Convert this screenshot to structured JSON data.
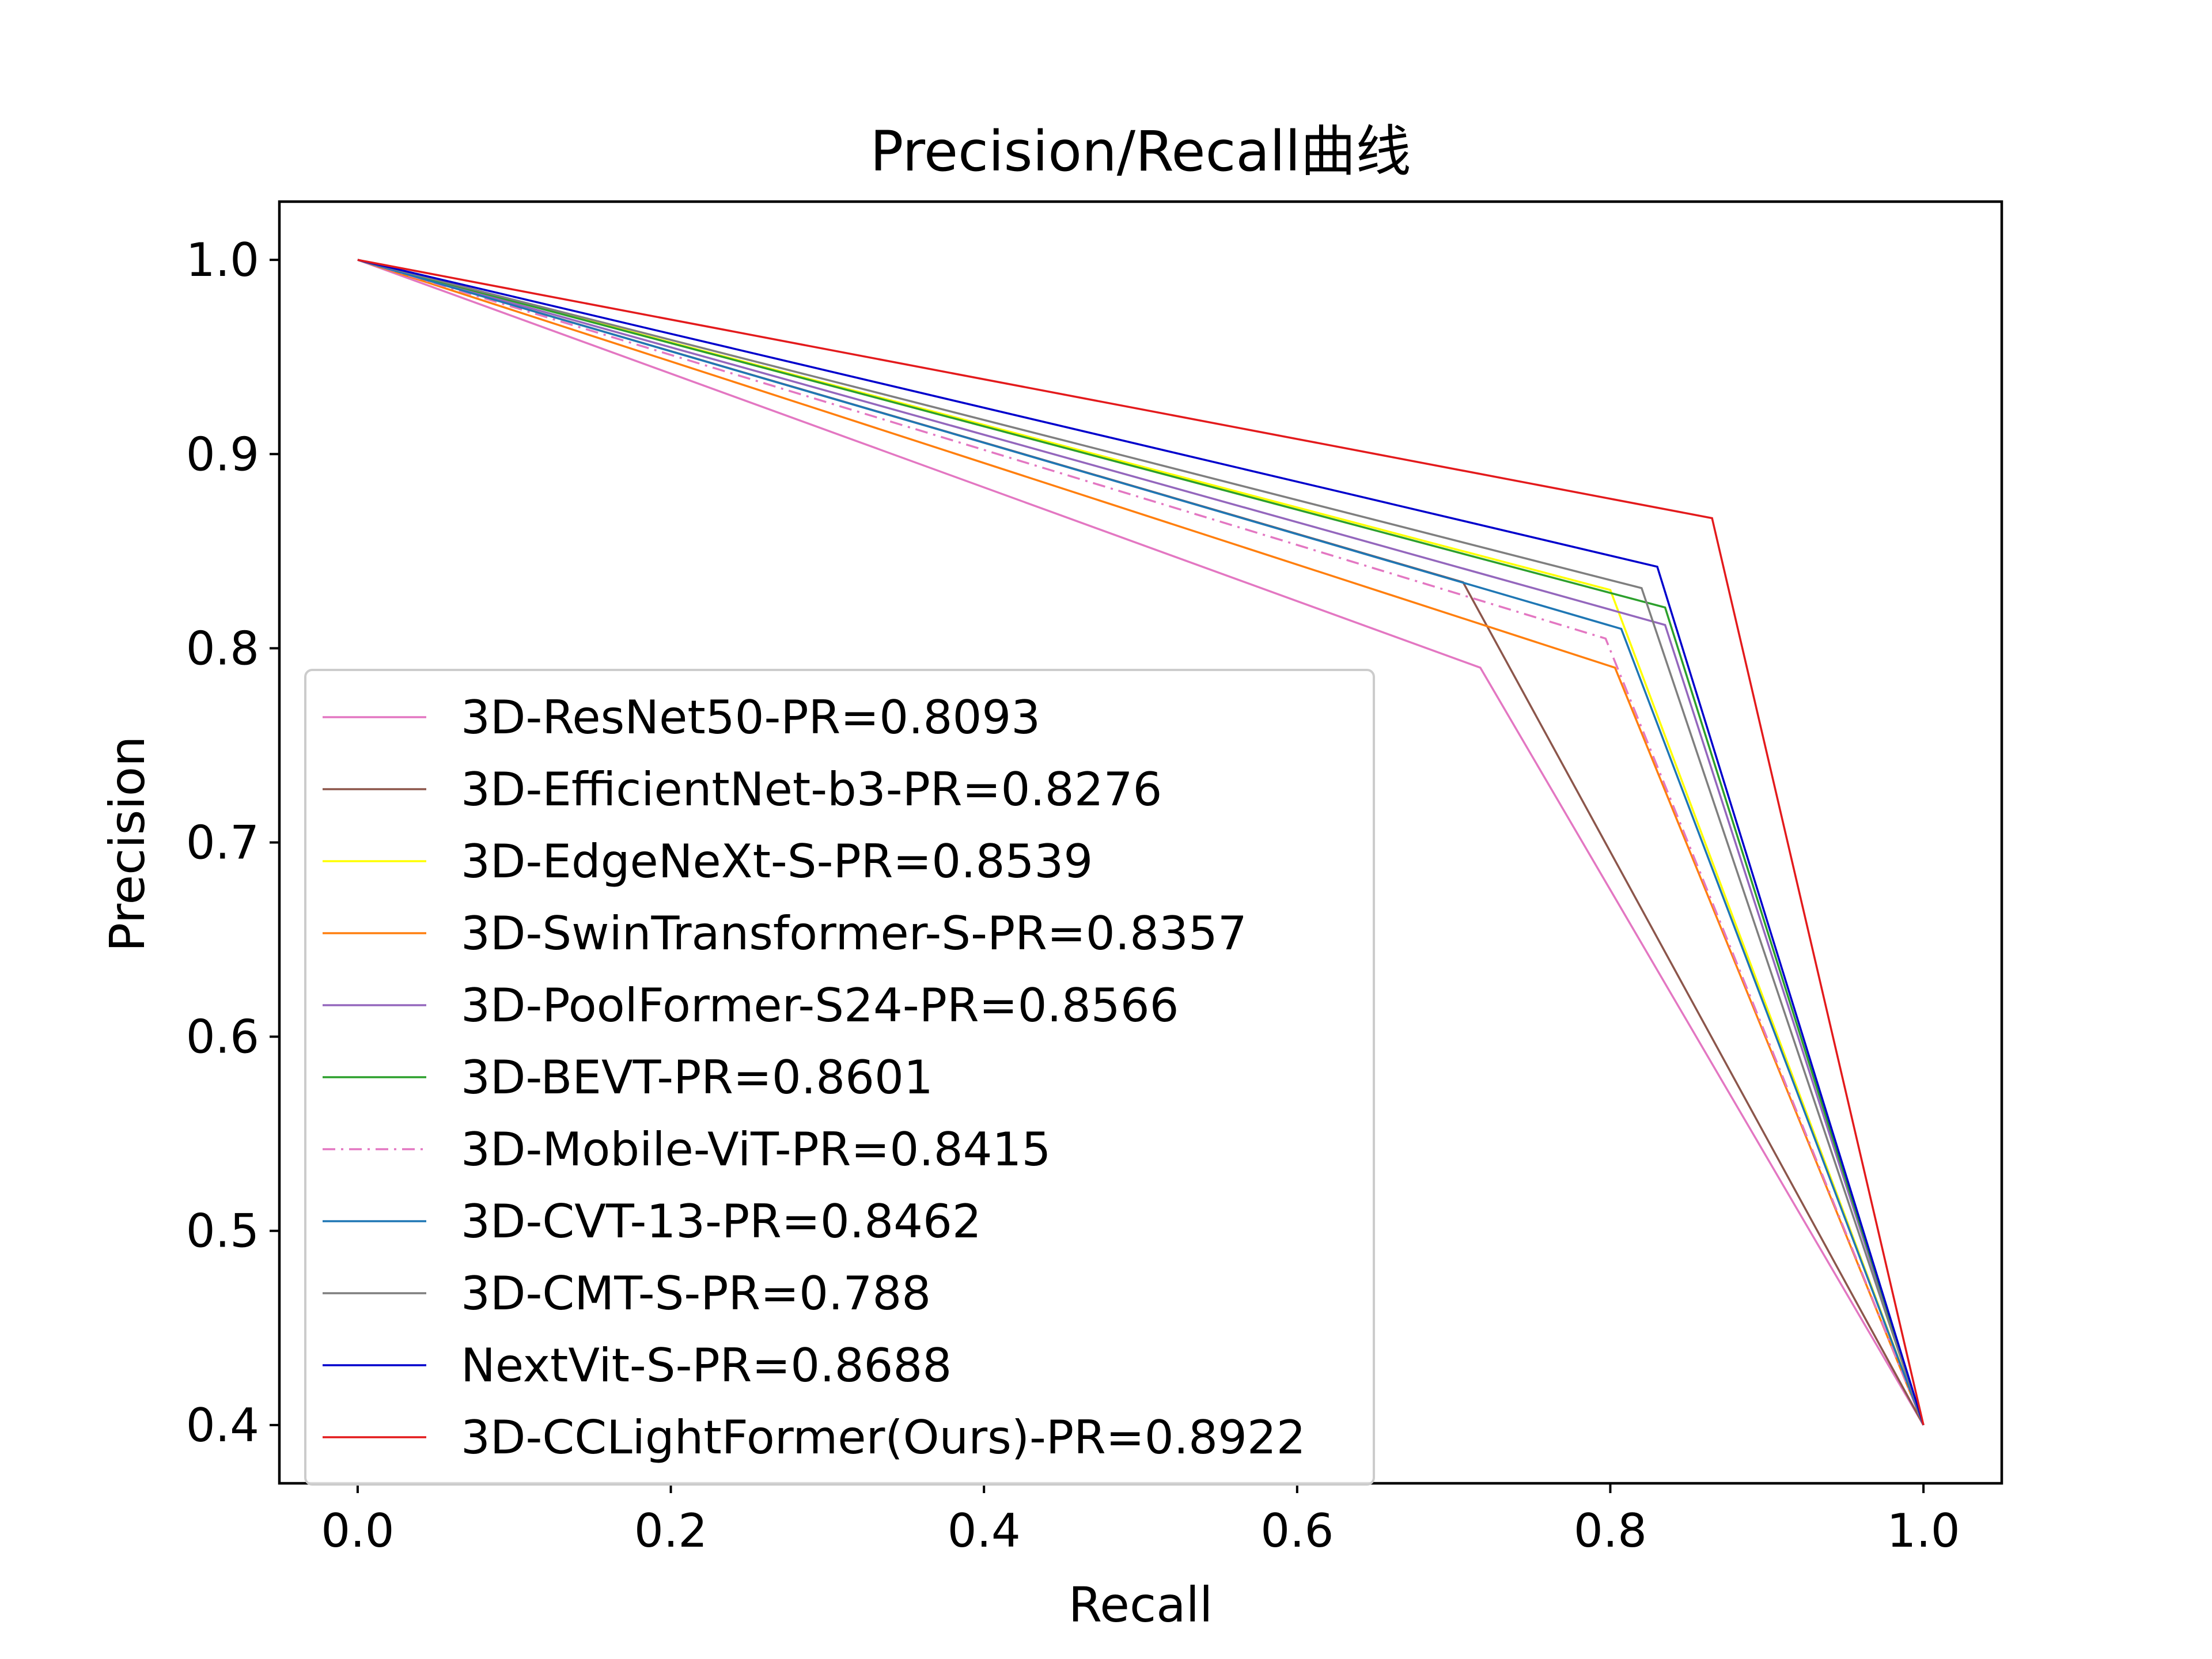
{
  "chart_data": {
    "type": "line",
    "title": "Precision/Recall曲线",
    "xlabel": "Recall",
    "ylabel": "Precision",
    "xlim": [
      -0.05,
      1.05
    ],
    "ylim": [
      0.37,
      1.03
    ],
    "xticks": [
      0.0,
      0.2,
      0.4,
      0.6,
      0.8,
      1.0
    ],
    "xtick_labels": [
      "0.0",
      "0.2",
      "0.4",
      "0.6",
      "0.8",
      "1.0"
    ],
    "yticks": [
      0.4,
      0.5,
      0.6,
      0.7,
      0.8,
      0.9,
      1.0
    ],
    "ytick_labels": [
      "0.4",
      "0.5",
      "0.6",
      "0.7",
      "0.8",
      "0.9",
      "1.0"
    ],
    "grid": false,
    "legend_position": "lower-left",
    "series": [
      {
        "name": "3D-ResNet50-PR=0.8093",
        "color": "#e377c2",
        "dash": "solid",
        "x": [
          0.0,
          0.717,
          1.0
        ],
        "y": [
          1.0,
          0.79,
          0.4
        ]
      },
      {
        "name": "3D-EfficientNet-b3-PR=0.8276",
        "color": "#8c564b",
        "dash": "solid",
        "x": [
          0.0,
          0.706,
          1.0
        ],
        "y": [
          1.0,
          0.834,
          0.4
        ]
      },
      {
        "name": "3D-EdgeNeXt-S-PR=0.8539",
        "color": "#ffff00",
        "dash": "solid",
        "x": [
          0.0,
          0.8,
          1.0
        ],
        "y": [
          1.0,
          0.83,
          0.4
        ]
      },
      {
        "name": "3D-SwinTransformer-S-PR=0.8357",
        "color": "#ff7f0e",
        "dash": "solid",
        "x": [
          0.0,
          0.803,
          1.0
        ],
        "y": [
          1.0,
          0.79,
          0.4
        ]
      },
      {
        "name": "3D-PoolFormer-S24-PR=0.8566",
        "color": "#9467bd",
        "dash": "solid",
        "x": [
          0.0,
          0.835,
          1.0
        ],
        "y": [
          1.0,
          0.812,
          0.4
        ]
      },
      {
        "name": "3D-BEVT-PR=0.8601",
        "color": "#2ca02c",
        "dash": "solid",
        "x": [
          0.0,
          0.835,
          1.0
        ],
        "y": [
          1.0,
          0.821,
          0.4
        ]
      },
      {
        "name": "3D-Mobile-ViT-PR=0.8415",
        "color": "#e377c2",
        "dash": "dashdot",
        "x": [
          0.0,
          0.797,
          1.0
        ],
        "y": [
          1.0,
          0.805,
          0.4
        ]
      },
      {
        "name": "3D-CVT-13-PR=0.8462",
        "color": "#1f77b4",
        "dash": "solid",
        "x": [
          0.0,
          0.807,
          1.0
        ],
        "y": [
          1.0,
          0.81,
          0.4
        ]
      },
      {
        "name": "3D-CMT-S-PR=0.788",
        "color": "#7f7f7f",
        "dash": "solid",
        "x": [
          0.0,
          0.82,
          1.0
        ],
        "y": [
          1.0,
          0.831,
          0.4
        ]
      },
      {
        "name": "NextVit-S-PR=0.8688",
        "color": "#0000cc",
        "dash": "solid",
        "x": [
          0.0,
          0.83,
          1.0
        ],
        "y": [
          1.0,
          0.842,
          0.4
        ]
      },
      {
        "name": "3D-CCLightFormer(Ours)-PR=0.8922",
        "color": "#e31a1c",
        "dash": "solid",
        "x": [
          0.0,
          0.865,
          1.0
        ],
        "y": [
          1.0,
          0.867,
          0.4
        ]
      }
    ]
  }
}
